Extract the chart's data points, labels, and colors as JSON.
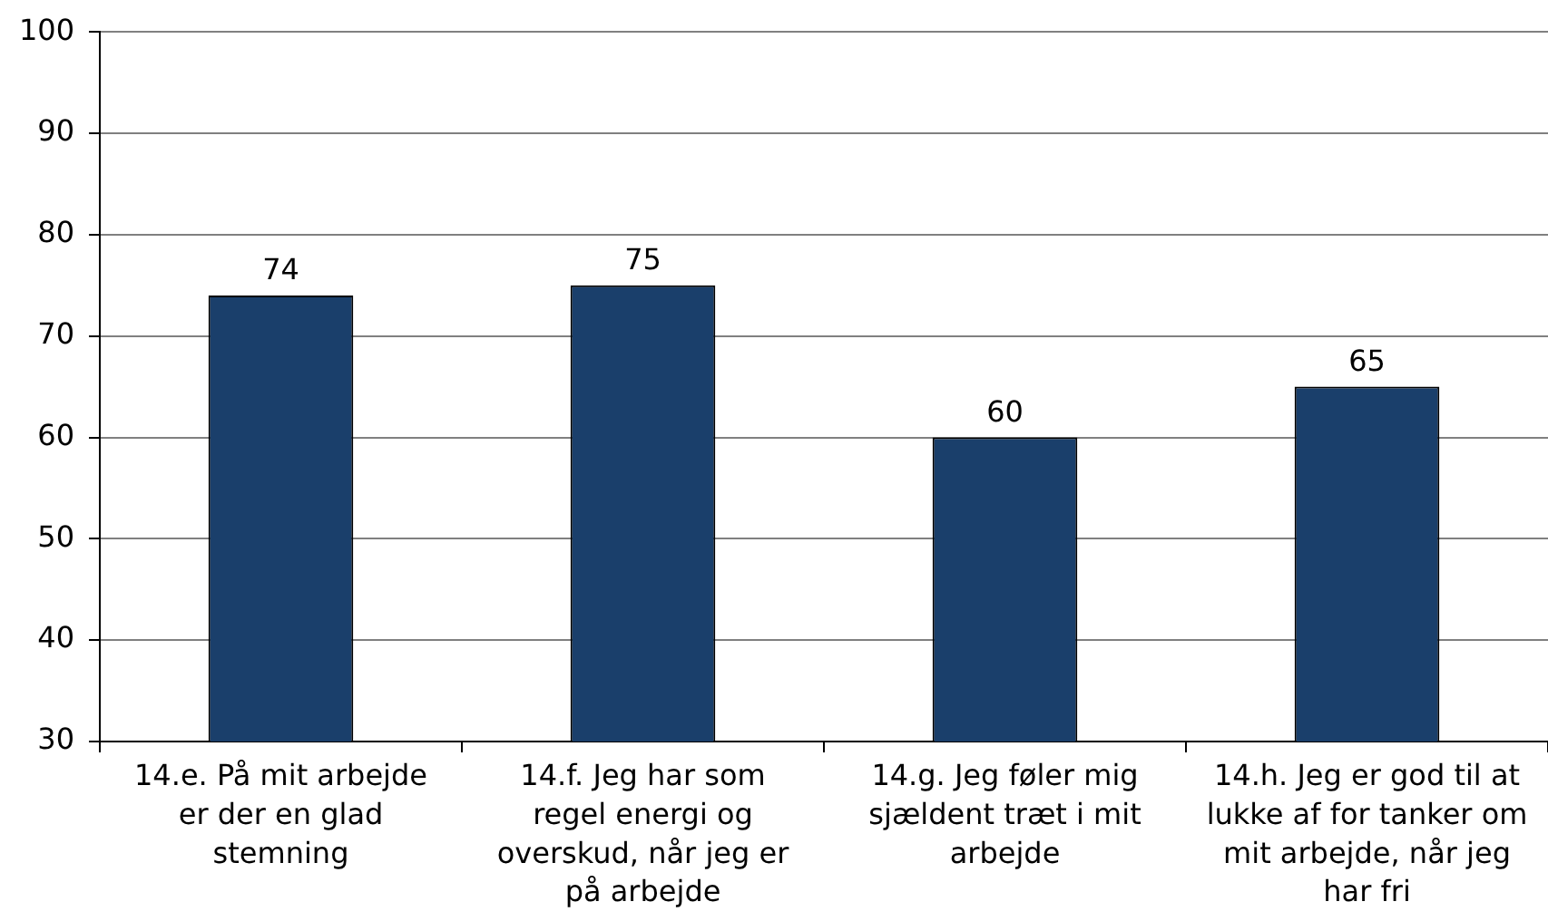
{
  "chart_data": {
    "type": "bar",
    "categories": [
      "14.e. På mit arbejde er der en glad stemning",
      "14.f. Jeg har som regel energi og overskud, når jeg er på arbejde",
      "14.g. Jeg føler mig sjældent træt i mit arbejde",
      "14.h. Jeg er god til at lukke af for tanker om mit arbejde, når jeg har fri"
    ],
    "values": [
      74,
      75,
      60,
      65
    ],
    "color": "#1a3f6b",
    "ylim": [
      30,
      100
    ],
    "yticks": [
      30,
      40,
      50,
      60,
      70,
      80,
      90,
      100
    ],
    "grid": "y",
    "legend": false,
    "data_labels": true
  }
}
